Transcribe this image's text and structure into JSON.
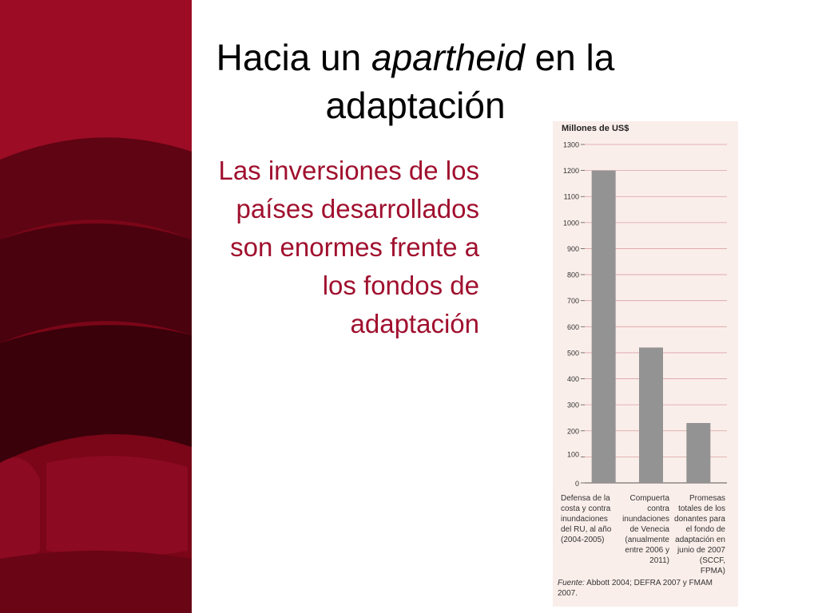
{
  "slide": {
    "title_part1": "Hacia un ",
    "title_italic": "apartheid",
    "title_part2": " en la adaptación",
    "subtitle": "Las inversiones de los países desarrollados son enormes frente a los fondos de adaptación"
  },
  "colors": {
    "accent": "#a0102e",
    "bar": "#939393",
    "grid": "#d9a0a5",
    "figure_bg": "#faeeea"
  },
  "chart_data": {
    "type": "bar",
    "ylabel": "Millones de US$",
    "ylim": [
      0,
      1300
    ],
    "yticks": [
      0,
      100,
      200,
      300,
      400,
      500,
      600,
      700,
      800,
      900,
      1000,
      1100,
      1200,
      1300
    ],
    "grid": true,
    "categories": [
      "Defensa de la\ncosta y contra\ninundaciones\ndel RU, al año\n(2004-2005)",
      "Compuerta\ncontra\ninundaciones\nde Venecia\n(anualmente\nentre 2006 y 2011)",
      "Promesas\ntotales de los\ndonantes para\nel fondo de\nadaptación en\njunio de 2007\n(SCCF,\nFPMA)"
    ],
    "values": [
      1200,
      520,
      230
    ],
    "source_label": "Fuente:",
    "source_text": " Abbott 2004; DEFRA 2007 y FMAM 2007."
  }
}
